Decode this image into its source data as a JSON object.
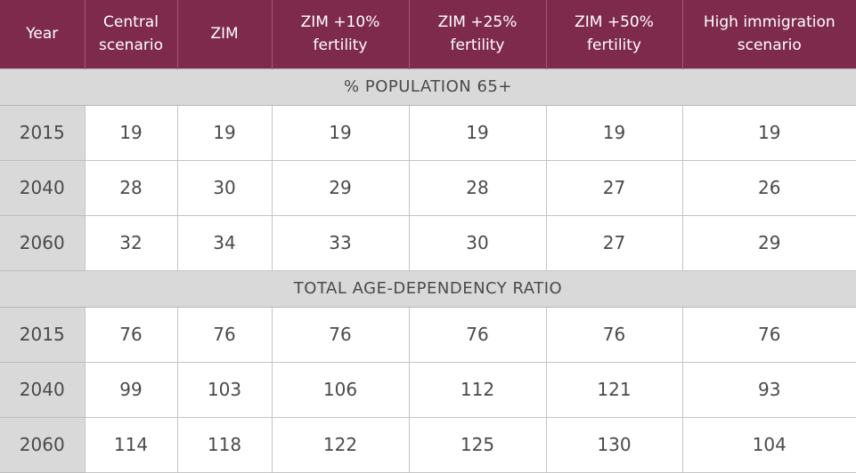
{
  "table": {
    "headers": [
      "Year",
      "Central\nscenario",
      "ZIM",
      "ZIM +10%\nfertility",
      "ZIM +25%\nfertility",
      "ZIM +50%\nfertility",
      "High immigration\nscenario"
    ],
    "sections": [
      {
        "title": "% POPULATION 65+",
        "rows": [
          [
            "2015",
            "19",
            "19",
            "19",
            "19",
            "19",
            "19"
          ],
          [
            "2040",
            "28",
            "30",
            "29",
            "28",
            "27",
            "26"
          ],
          [
            "2060",
            "32",
            "34",
            "33",
            "30",
            "27",
            "29"
          ]
        ]
      },
      {
        "title": "TOTAL AGE-DEPENDENCY RATIO",
        "rows": [
          [
            "2015",
            "76",
            "76",
            "76",
            "76",
            "76",
            "76"
          ],
          [
            "2040",
            "99",
            "103",
            "106",
            "112",
            "121",
            "93"
          ],
          [
            "2060",
            "114",
            "118",
            "122",
            "125",
            "130",
            "104"
          ]
        ]
      }
    ]
  },
  "colors": {
    "header_bg": "#7e2a4d",
    "section_bg": "#d9d9d9",
    "year_bg": "#d9d9d9",
    "text": "#4a4a4a"
  }
}
